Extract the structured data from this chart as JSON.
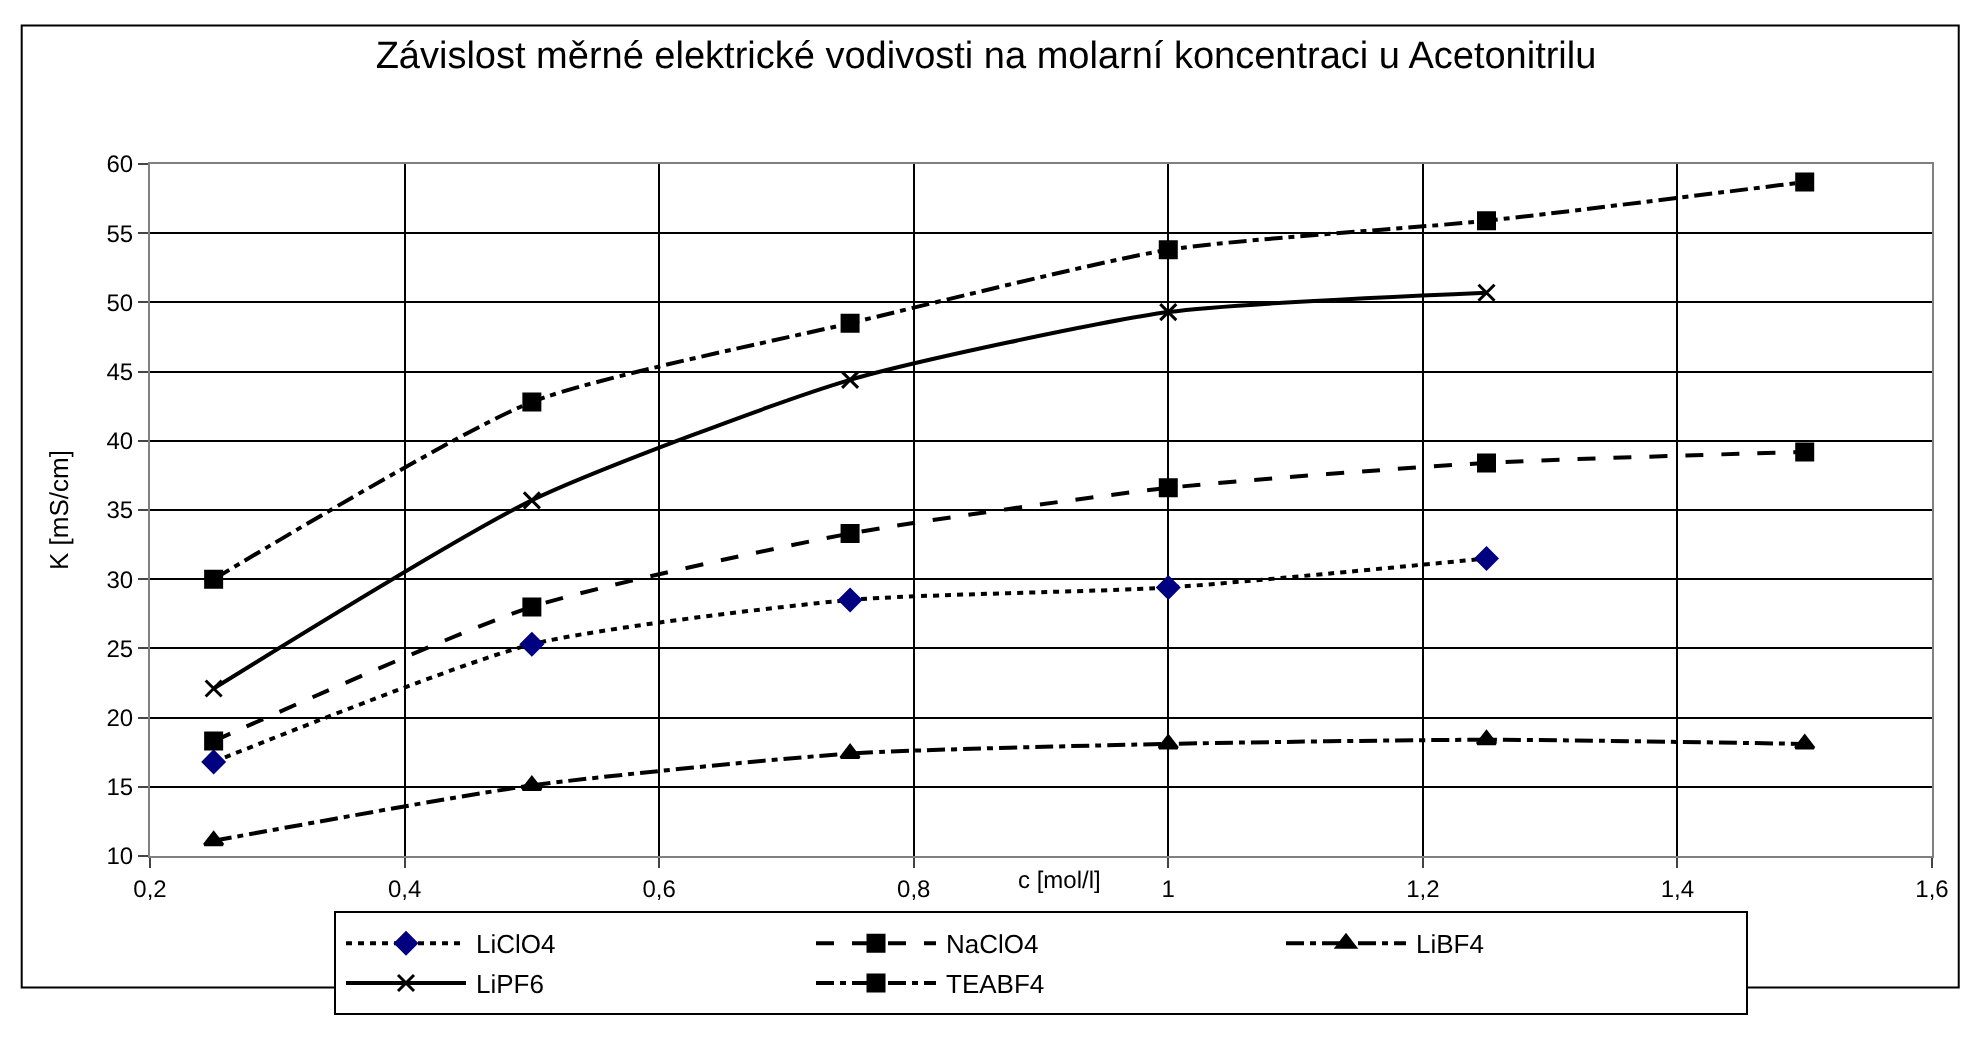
{
  "chart_data": {
    "type": "line",
    "title": "Závislost měrné elektrické vodivosti na molarní koncentraci u Acetonitrilu",
    "xlabel": "c [mol/l]",
    "ylabel": "K [mS/cm]",
    "x": [
      0.25,
      0.5,
      0.75,
      1,
      1.25,
      1.5
    ],
    "series": [
      {
        "name": "LiClO4",
        "color": "#000080",
        "marker": "diamond",
        "line_style": "dotted",
        "values": [
          16.8,
          25.3,
          28.5,
          29.4,
          31.5,
          null
        ]
      },
      {
        "name": "NaClO4",
        "color": "#000000",
        "marker": "square",
        "line_style": "dashed",
        "values": [
          18.3,
          28.0,
          33.3,
          36.6,
          38.4,
          39.2
        ]
      },
      {
        "name": "LiBF4",
        "color": "#000000",
        "marker": "triangle",
        "line_style": "dashdot",
        "values": [
          11.1,
          15.1,
          17.4,
          18.1,
          18.4,
          18.1
        ]
      },
      {
        "name": "LiPF6",
        "color": "#000000",
        "marker": "cross",
        "line_style": "solid",
        "values": [
          22.1,
          35.7,
          44.4,
          49.3,
          50.7,
          null
        ]
      },
      {
        "name": "TEABF4",
        "color": "#000000",
        "marker": "square",
        "line_style": "dashdot",
        "values": [
          30.0,
          42.8,
          48.5,
          53.8,
          55.9,
          58.7
        ]
      }
    ],
    "xlim": [
      0.2,
      1.6
    ],
    "xticks": [
      {
        "value": 0.2,
        "label": "0,2"
      },
      {
        "value": 0.4,
        "label": "0,4"
      },
      {
        "value": 0.6,
        "label": "0,6"
      },
      {
        "value": 0.8,
        "label": "0,8"
      },
      {
        "value": 1,
        "label": "1"
      },
      {
        "value": 1.2,
        "label": "1,2"
      },
      {
        "value": 1.4,
        "label": "1,4"
      },
      {
        "value": 1.6,
        "label": "1,6"
      }
    ],
    "ylim": [
      10,
      60
    ],
    "yticks": [
      10,
      15,
      20,
      25,
      30,
      35,
      40,
      45,
      50,
      55,
      60
    ],
    "grid": true,
    "legend": "bottom"
  }
}
